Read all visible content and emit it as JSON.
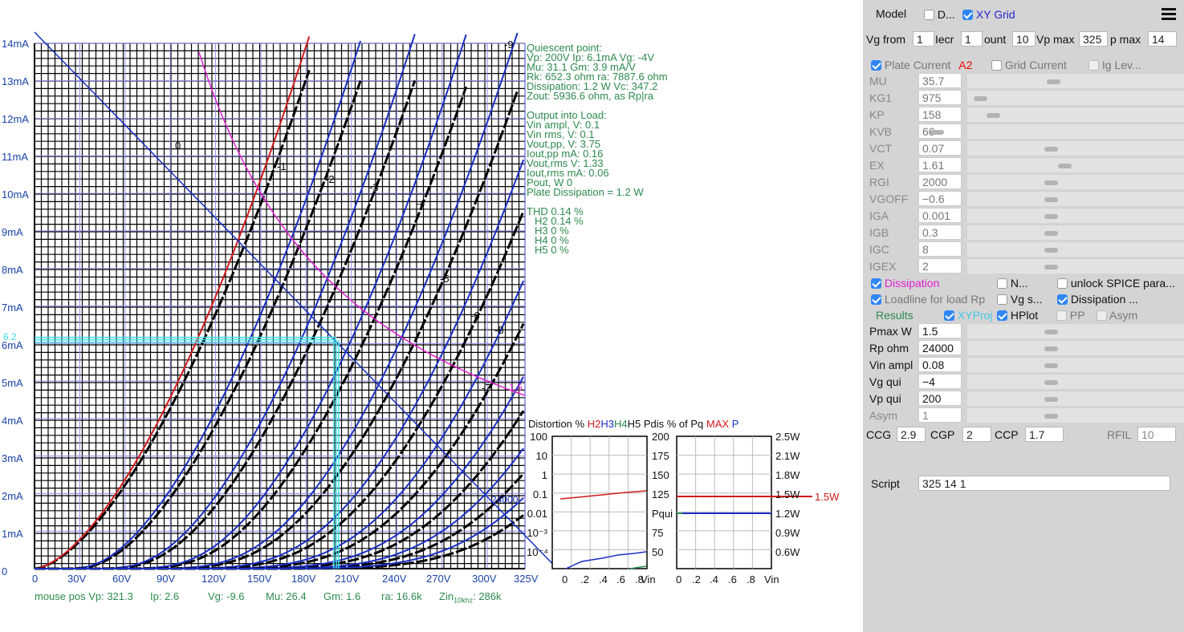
{
  "plot": {
    "y_labels": [
      "14mA",
      "13mA",
      "12mA",
      "11mA",
      "10mA",
      "9mA",
      "8mA",
      "7mA",
      "6mA",
      "5mA",
      "4mA",
      "3mA",
      "2mA",
      "1mA",
      "0"
    ],
    "x_labels": [
      "0",
      "30V",
      "60V",
      "90V",
      "120V",
      "150V",
      "180V",
      "210V",
      "240V",
      "270V",
      "300V",
      "325V"
    ],
    "curve_labels": [
      "0",
      "-1",
      "-2",
      "-3",
      "-4",
      "-5",
      "-6",
      "-7",
      "-8",
      "-9"
    ],
    "cursor_label": "6.2",
    "dissipation_label": "1.5",
    "loadline_label": "24000"
  },
  "info": {
    "quiescent": [
      "Quiescent point:",
      "Vp: 200V  Ip: 6.1mA  Vg: -4V",
      "Mu: 31.1 Gm: 3.9 mA/V",
      "Rk: 652.3 ohm  ra: 7887.6 ohm",
      "Dissipation: 1.2 W Vc: 347.2",
      "Zout: 5936.6 ohm, as Rp|ra"
    ],
    "output": [
      "Output into Load:",
      "Vin ampl, V: 0.1",
      "Vin rms,  V: 0.1",
      "Vout,pp,   V: 3.75",
      "Iout,pp    mA: 0.16",
      "Vout,rms   V: 1.33",
      "Iout,rms  mA: 0.06",
      "Pout, W       0",
      "Plate Dissipation = 1.2 W"
    ],
    "harmonics": [
      "THD 0.14 %",
      "H2 0.14 %",
      "H3 0 %",
      "H4 0 %",
      "H5 0 %"
    ]
  },
  "distortion": {
    "title_prefix": "Distortion %",
    "h2": "H2",
    "h3": "H3",
    "h4": "H4",
    "h5": "H5",
    "pdis": "Pdis % of Pq",
    "max": "MAX",
    "p": "P",
    "left_axis": [
      "100",
      "10",
      "1",
      "0.1",
      "0.01",
      "10⁻³",
      "10⁻⁴"
    ],
    "mid_axis": [
      "200",
      "175",
      "150",
      "125",
      "Pqui",
      "75",
      "50"
    ],
    "right_axis": [
      "2.5W",
      "2.1W",
      "1.8W",
      "1.5W",
      "1.2W",
      "0.9W",
      "0.6W"
    ],
    "red_line_label": "1.5W",
    "x_axis": [
      "0",
      ".2",
      ".4",
      ".6",
      ".8",
      "Vin"
    ]
  },
  "status": {
    "mouse_vp": "mouse pos Vp: 321.3",
    "ip": "Ip: 2.6",
    "vg": "Vg: -9.6",
    "mu": "Mu: 26.4",
    "gm": "Gm: 1.6",
    "ra": "ra: 16.6k",
    "zin": "Zin",
    "zin_sub": "10khz",
    "zin_val": ": 286k"
  },
  "panel": {
    "model_label": "Model",
    "d_label": "D...",
    "xy_grid_label": "XY Grid",
    "vg_from_label": "Vg from",
    "vg_from_val": "1",
    "incr_label": "Iecr",
    "incr_val": "1",
    "count_label": "ount",
    "count_val": "10",
    "vp_max_label": "Vp max",
    "vp_max_val": "325",
    "p_max_label": "p max",
    "p_max_val": "14",
    "plate_current": "Plate Current",
    "a2": "A2",
    "grid_current": "Grid Current",
    "ig_lev": "Ig Lev...",
    "params": [
      {
        "name": "MU",
        "value": "35.7"
      },
      {
        "name": "KG1",
        "value": "975"
      },
      {
        "name": "KP",
        "value": "158"
      },
      {
        "name": "KVB",
        "value": "66"
      },
      {
        "name": "VCT",
        "value": "0.07"
      },
      {
        "name": "EX",
        "value": "1.61"
      },
      {
        "name": "RGI",
        "value": "2000"
      },
      {
        "name": "VGOFF",
        "value": "−0.6"
      },
      {
        "name": "IGA",
        "value": "0.001"
      },
      {
        "name": "IGB",
        "value": "0.3"
      },
      {
        "name": "IGC",
        "value": "8"
      },
      {
        "name": "IGEX",
        "value": "2"
      }
    ],
    "dissipation": "Dissipation",
    "n_label": "N...",
    "unlock_spice": "unlock SPICE para...",
    "loadline": "Loadline for load Rp",
    "vg_s": "Vg s...",
    "dissipation2": "Dissipation ...",
    "results": "Results",
    "xyproj": "XYProj",
    "hplot": "HPlot",
    "pp": "PP",
    "asym": "Asym",
    "load_params": [
      {
        "name": "Pmax W",
        "value": "1.5"
      },
      {
        "name": "Rp ohm",
        "value": "24000"
      },
      {
        "name": "Vin ampl",
        "value": "0.08"
      },
      {
        "name": "Vg qui",
        "value": "−4"
      },
      {
        "name": "Vp qui",
        "value": "200"
      },
      {
        "name": "Asym",
        "value": "1"
      }
    ],
    "ccg_label": "CCG",
    "ccg_val": "2.9",
    "cgp_label": "CGP",
    "cgp_val": "2",
    "ccp_label": "CCP",
    "ccp_val": "1.7",
    "rfil_label": "RFIL",
    "rfil_val": "10",
    "script_label": "Script",
    "script_val": "325 14 1"
  },
  "colors": {
    "plot_blue": "#1a2fc4",
    "plot_black": "#000000",
    "curve_red": "#d11a1a",
    "dissipation_magenta": "#e020d0",
    "cursor_cyan": "#40e0e8",
    "info_green": "#2d8a4e",
    "panel_bg": "#d4d4d4"
  }
}
